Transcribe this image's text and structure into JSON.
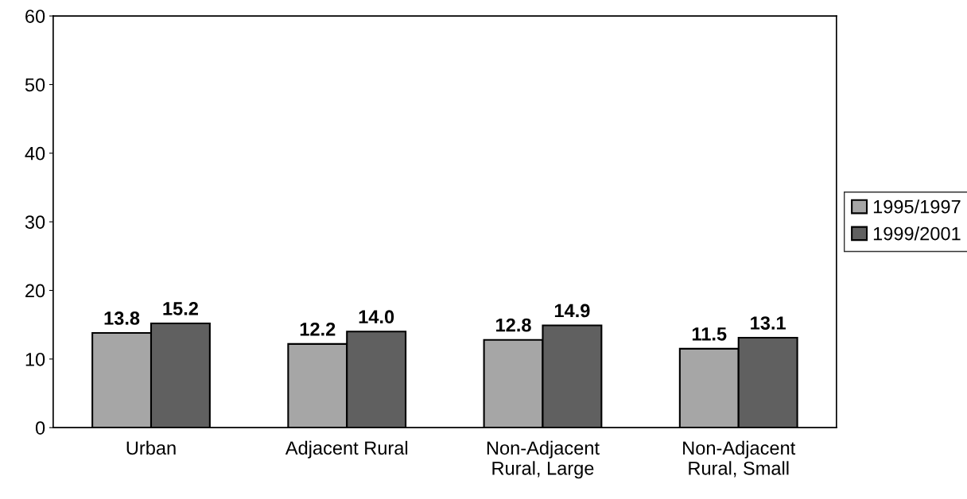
{
  "chart_data": {
    "type": "bar",
    "categories": [
      "Urban",
      "Adjacent Rural",
      "Non-Adjacent\nRural, Large",
      "Non-Adjacent\nRural, Small"
    ],
    "series": [
      {
        "name": "1995/1997",
        "color": "#a6a6a6",
        "values": [
          13.8,
          12.2,
          12.8,
          11.5
        ],
        "value_labels": [
          "13.8",
          "12.2",
          "12.8",
          "11.5"
        ]
      },
      {
        "name": "1999/2001",
        "color": "#606060",
        "values": [
          15.2,
          14.0,
          14.9,
          13.1
        ],
        "value_labels": [
          "15.2",
          "14.0",
          "14.9",
          "13.1"
        ]
      }
    ],
    "ylim": [
      0,
      60
    ],
    "yticks": [
      0,
      10,
      20,
      30,
      40,
      50,
      60
    ],
    "legend": "right",
    "grid": false
  }
}
